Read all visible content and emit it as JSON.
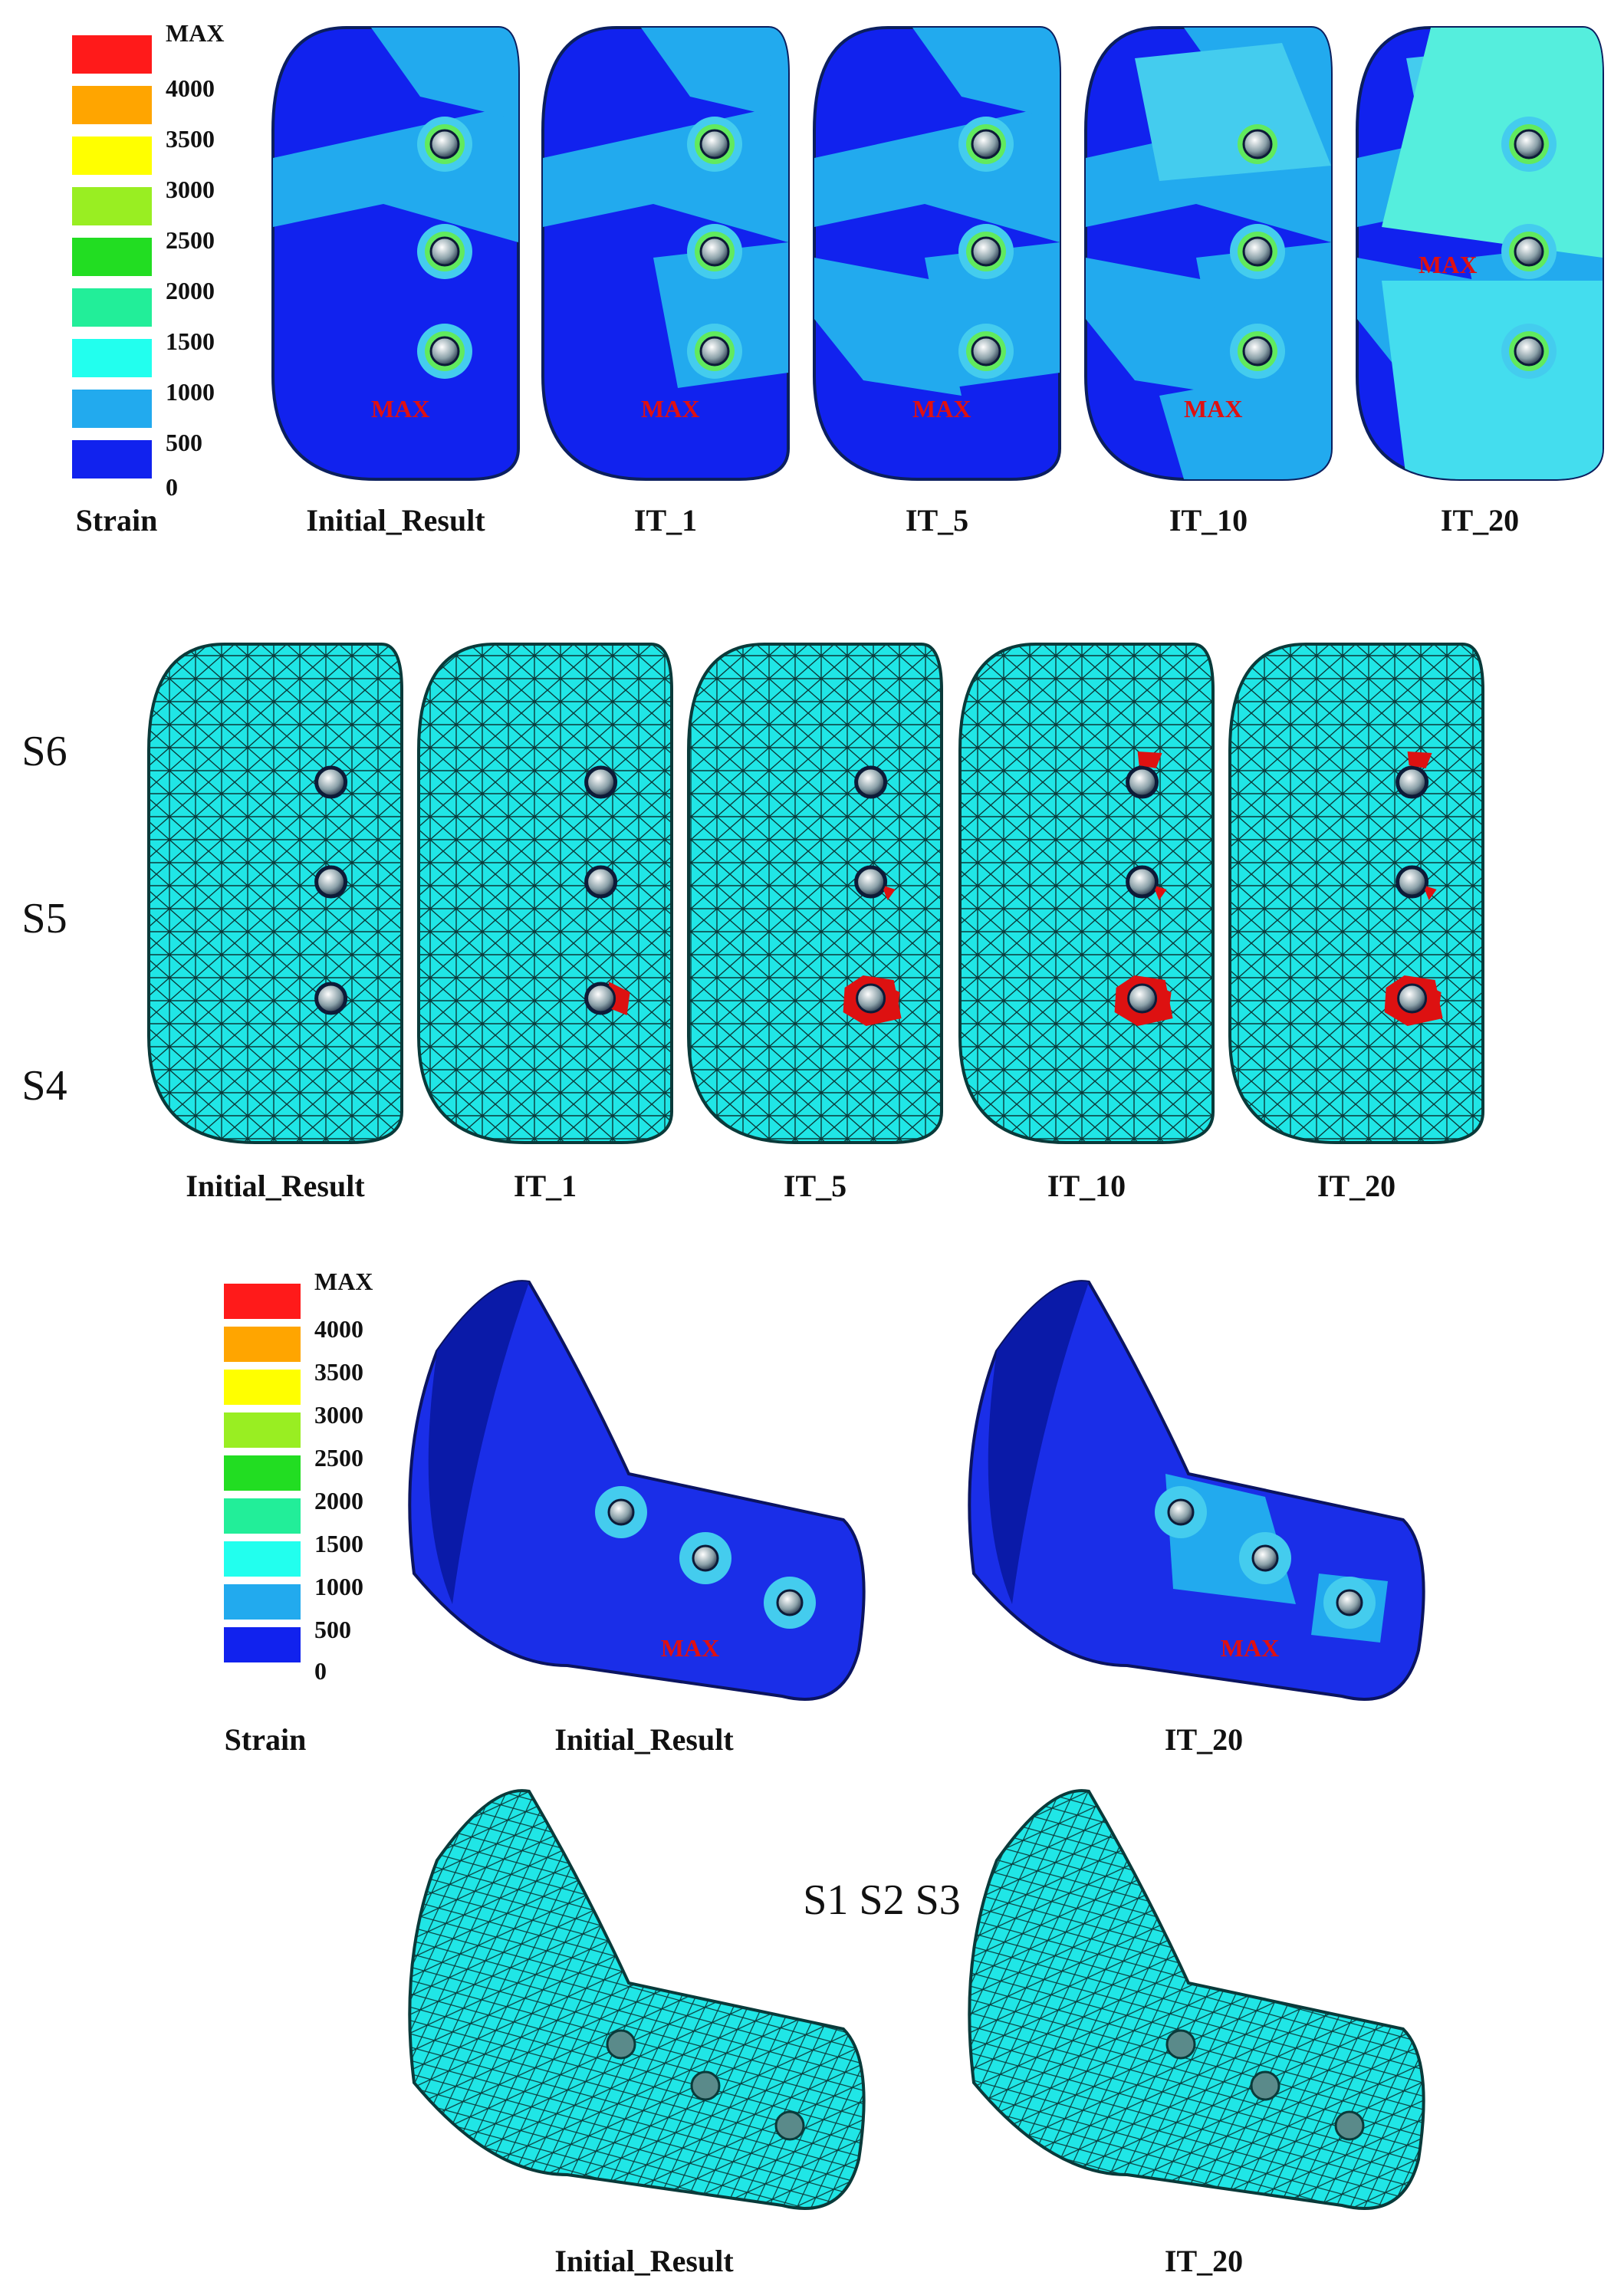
{
  "legend_top": {
    "entries": [
      {
        "label": "MAX",
        "color": "#ff1a1a"
      },
      {
        "label": "4000",
        "color": "#ffa500"
      },
      {
        "label": "3500",
        "color": "#ffff00"
      },
      {
        "label": "3000",
        "color": "#99ee22"
      },
      {
        "label": "2500",
        "color": "#22dd22"
      },
      {
        "label": "2000",
        "color": "#22ee99"
      },
      {
        "label": "1500",
        "color": "#22ffee"
      },
      {
        "label": "1000",
        "color": "#22aaee"
      },
      {
        "label": "500",
        "color": "#1122ee"
      }
    ],
    "zero_label": "0",
    "title": "Strain"
  },
  "row1": {
    "captions": [
      "Initial_Result",
      "IT_1",
      "IT_5",
      "IT_10",
      "IT_20"
    ],
    "max_tags": [
      "MAX",
      "MAX",
      "MAX",
      "MAX",
      "MAX"
    ]
  },
  "row2": {
    "captions": [
      "Initial_Result",
      "IT_1",
      "IT_5",
      "IT_10",
      "IT_20"
    ],
    "screw_labels": [
      "S6",
      "S5",
      "S4"
    ]
  },
  "legend_bottom": {
    "entries": [
      {
        "label": "MAX",
        "color": "#ff1a1a"
      },
      {
        "label": "4000",
        "color": "#ffa500"
      },
      {
        "label": "3500",
        "color": "#ffff00"
      },
      {
        "label": "3000",
        "color": "#99ee22"
      },
      {
        "label": "2500",
        "color": "#22dd22"
      },
      {
        "label": "2000",
        "color": "#22ee99"
      },
      {
        "label": "1500",
        "color": "#22ffee"
      },
      {
        "label": "1000",
        "color": "#22aaee"
      },
      {
        "label": "500",
        "color": "#1122ee"
      }
    ],
    "zero_label": "0",
    "title": "Strain"
  },
  "row3": {
    "captions": [
      "Initial_Result",
      "IT_20"
    ],
    "max_tags": [
      "MAX",
      "MAX"
    ]
  },
  "row4": {
    "captions": [
      "Initial_Result",
      "IT_20"
    ],
    "screw_labels": "S1 S2 S3"
  },
  "colors": {
    "deep_blue": "#1122ee",
    "light_blue": "#22aaee",
    "cyan": "#33ddee",
    "mesh_fill": "#20e6e6",
    "mesh_line": "#0a3a3a",
    "failed": "#dd1111"
  }
}
